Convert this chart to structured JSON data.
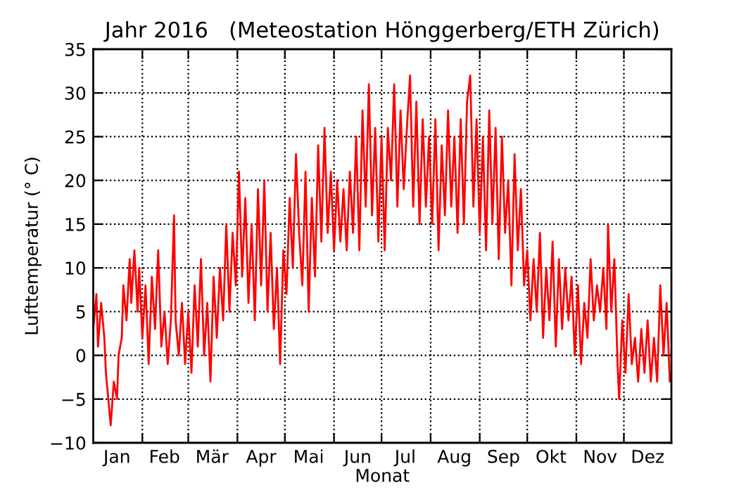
{
  "chart_data": {
    "type": "line",
    "title": "Jahr 2016   (Meteostation Hönggerberg/ETH Zürich)",
    "xlabel": "Monat",
    "ylabel": "Lufttemperatur (° C)",
    "x": [
      "2016-01-01",
      "2016-01-03",
      "2016-01-04",
      "2016-01-06",
      "2016-01-08",
      "2016-01-09",
      "2016-01-11",
      "2016-01-12",
      "2016-01-14",
      "2016-01-16",
      "2016-01-17",
      "2016-01-19",
      "2016-01-20",
      "2016-01-22",
      "2016-01-24",
      "2016-01-25",
      "2016-01-27",
      "2016-01-29",
      "2016-01-30",
      "2016-02-01",
      "2016-02-03",
      "2016-02-05",
      "2016-02-07",
      "2016-02-09",
      "2016-02-11",
      "2016-02-13",
      "2016-02-15",
      "2016-02-17",
      "2016-02-19",
      "2016-02-21",
      "2016-02-22",
      "2016-02-24",
      "2016-02-26",
      "2016-02-28",
      "2016-03-01",
      "2016-03-03",
      "2016-03-05",
      "2016-03-07",
      "2016-03-09",
      "2016-03-11",
      "2016-03-13",
      "2016-03-15",
      "2016-03-17",
      "2016-03-19",
      "2016-03-21",
      "2016-03-23",
      "2016-03-25",
      "2016-03-27",
      "2016-03-29",
      "2016-03-31",
      "2016-04-02",
      "2016-04-04",
      "2016-04-06",
      "2016-04-08",
      "2016-04-10",
      "2016-04-12",
      "2016-04-14",
      "2016-04-16",
      "2016-04-18",
      "2016-04-20",
      "2016-04-22",
      "2016-04-24",
      "2016-04-26",
      "2016-04-28",
      "2016-04-30",
      "2016-05-02",
      "2016-05-04",
      "2016-05-06",
      "2016-05-08",
      "2016-05-10",
      "2016-05-12",
      "2016-05-14",
      "2016-05-16",
      "2016-05-18",
      "2016-05-20",
      "2016-05-22",
      "2016-05-24",
      "2016-05-26",
      "2016-05-28",
      "2016-05-30",
      "2016-06-01",
      "2016-06-03",
      "2016-06-05",
      "2016-06-07",
      "2016-06-09",
      "2016-06-11",
      "2016-06-13",
      "2016-06-15",
      "2016-06-17",
      "2016-06-19",
      "2016-06-21",
      "2016-06-23",
      "2016-06-25",
      "2016-06-27",
      "2016-06-29",
      "2016-07-01",
      "2016-07-03",
      "2016-07-05",
      "2016-07-07",
      "2016-07-09",
      "2016-07-11",
      "2016-07-13",
      "2016-07-15",
      "2016-07-17",
      "2016-07-19",
      "2016-07-21",
      "2016-07-23",
      "2016-07-25",
      "2016-07-27",
      "2016-07-29",
      "2016-07-31",
      "2016-08-02",
      "2016-08-04",
      "2016-08-06",
      "2016-08-08",
      "2016-08-10",
      "2016-08-12",
      "2016-08-14",
      "2016-08-16",
      "2016-08-18",
      "2016-08-20",
      "2016-08-22",
      "2016-08-24",
      "2016-08-26",
      "2016-08-28",
      "2016-08-30",
      "2016-09-01",
      "2016-09-03",
      "2016-09-05",
      "2016-09-07",
      "2016-09-09",
      "2016-09-11",
      "2016-09-13",
      "2016-09-15",
      "2016-09-17",
      "2016-09-19",
      "2016-09-21",
      "2016-09-23",
      "2016-09-25",
      "2016-09-27",
      "2016-09-29",
      "2016-10-01",
      "2016-10-03",
      "2016-10-05",
      "2016-10-07",
      "2016-10-09",
      "2016-10-11",
      "2016-10-13",
      "2016-10-15",
      "2016-10-17",
      "2016-10-19",
      "2016-10-21",
      "2016-10-23",
      "2016-10-25",
      "2016-10-27",
      "2016-10-29",
      "2016-10-31",
      "2016-11-02",
      "2016-11-04",
      "2016-11-06",
      "2016-11-08",
      "2016-11-10",
      "2016-11-12",
      "2016-11-14",
      "2016-11-16",
      "2016-11-18",
      "2016-11-20",
      "2016-11-21",
      "2016-11-23",
      "2016-11-25",
      "2016-11-27",
      "2016-11-28",
      "2016-11-30",
      "2016-12-02",
      "2016-12-04",
      "2016-12-06",
      "2016-12-08",
      "2016-12-10",
      "2016-12-12",
      "2016-12-14",
      "2016-12-16",
      "2016-12-18",
      "2016-12-20",
      "2016-12-22",
      "2016-12-24",
      "2016-12-26",
      "2016-12-28",
      "2016-12-30",
      "2016-12-31"
    ],
    "series": [
      {
        "color": "#ff0000",
        "values": [
          3,
          7,
          1,
          6,
          2,
          -2,
          -6,
          -8,
          -3,
          -5,
          0,
          2,
          8,
          4,
          11,
          6,
          12,
          5,
          10,
          2,
          8,
          -1,
          9,
          3,
          12,
          1,
          5,
          -1,
          4,
          16,
          4,
          0,
          6,
          -1,
          5,
          -2,
          8,
          1,
          11,
          0,
          6,
          -3,
          9,
          2,
          10,
          4,
          15,
          5,
          14,
          8,
          21,
          9,
          18,
          6,
          15,
          4,
          19,
          8,
          20,
          5,
          14,
          3,
          10,
          -1,
          12,
          7,
          18,
          10,
          23,
          14,
          8,
          21,
          5,
          18,
          9,
          24,
          13,
          26,
          14,
          21,
          12,
          20,
          13,
          19,
          12,
          21,
          14,
          25,
          12,
          28,
          17,
          31,
          16,
          26,
          13,
          25,
          12,
          26,
          20,
          31,
          17,
          28,
          19,
          26,
          32,
          17,
          29,
          15,
          27,
          17,
          25,
          15,
          27,
          12,
          24,
          16,
          28,
          17,
          25,
          14,
          27,
          15,
          29,
          32,
          17,
          27,
          14,
          25,
          12,
          28,
          15,
          26,
          11,
          25,
          14,
          20,
          8,
          23,
          12,
          19,
          8,
          12,
          4,
          11,
          5,
          14,
          2,
          10,
          4,
          13,
          1,
          11,
          3,
          10,
          4,
          9,
          0,
          8,
          -1,
          6,
          2,
          11,
          4,
          8,
          5,
          10,
          3,
          15,
          5,
          11,
          -1,
          -5,
          4,
          -2,
          7,
          -1,
          2,
          -3,
          3,
          -2,
          4,
          -3,
          2,
          -3,
          8,
          0,
          6,
          -3,
          -2
        ]
      }
    ],
    "xlim": [
      "2016-01-01",
      "2016-12-31"
    ],
    "xticks": [
      {
        "value": "2016-02-01",
        "label": null
      },
      {
        "value": "2016-03-01",
        "label": null
      },
      {
        "value": "2016-04-01",
        "label": null
      },
      {
        "value": "2016-05-01",
        "label": null
      },
      {
        "value": "2016-06-01",
        "label": null
      },
      {
        "value": "2016-07-01",
        "label": null
      },
      {
        "value": "2016-08-01",
        "label": null
      },
      {
        "value": "2016-09-01",
        "label": null
      },
      {
        "value": "2016-10-01",
        "label": null
      },
      {
        "value": "2016-11-01",
        "label": null
      },
      {
        "value": "2016-12-01",
        "label": null
      },
      {
        "value": "2016-01-16",
        "label": "Jan"
      },
      {
        "value": "2016-02-15",
        "label": "Feb"
      },
      {
        "value": "2016-03-16",
        "label": "Mär"
      },
      {
        "value": "2016-04-16",
        "label": "Apr"
      },
      {
        "value": "2016-05-16",
        "label": "Mai"
      },
      {
        "value": "2016-06-16",
        "label": "Jun"
      },
      {
        "value": "2016-07-16",
        "label": "Jul"
      },
      {
        "value": "2016-08-16",
        "label": "Aug"
      },
      {
        "value": "2016-09-16",
        "label": "Sep"
      },
      {
        "value": "2016-10-16",
        "label": "Okt"
      },
      {
        "value": "2016-11-16",
        "label": "Nov"
      },
      {
        "value": "2016-12-16",
        "label": "Dez"
      }
    ],
    "ylim": [
      -10,
      35
    ],
    "yticks": [
      -10,
      -5,
      0,
      5,
      10,
      15,
      20,
      25,
      30,
      35
    ],
    "grid": true,
    "line_style": "solid",
    "marker": "none"
  }
}
